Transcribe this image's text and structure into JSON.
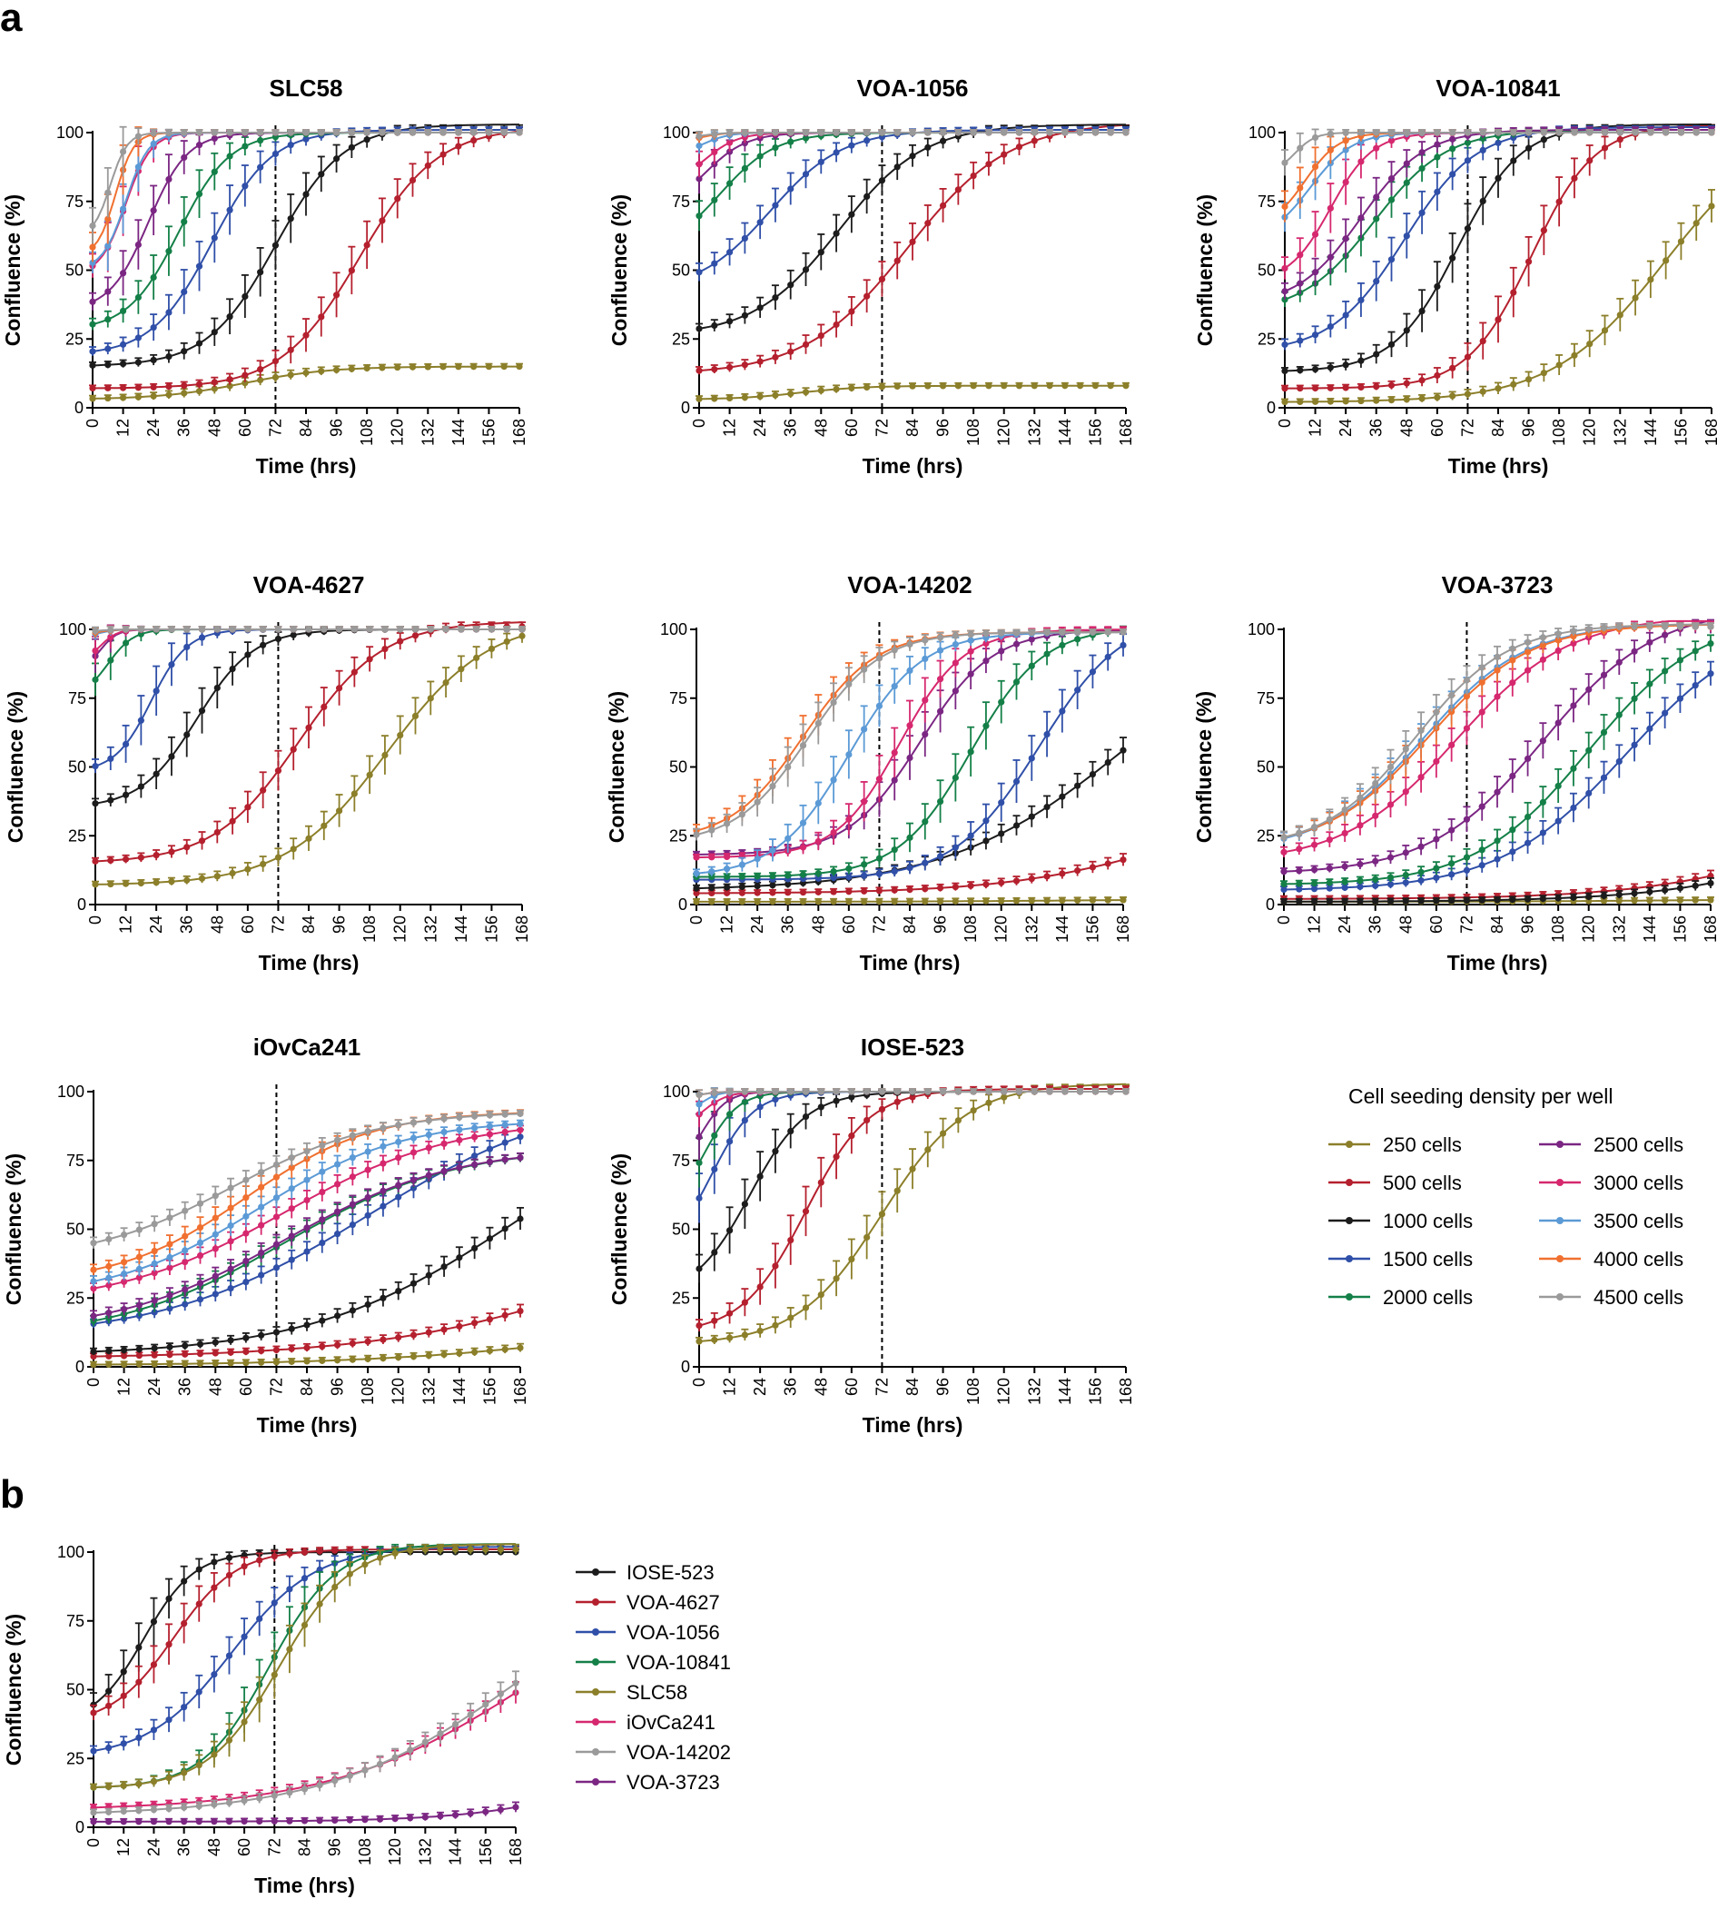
{
  "figure": {
    "panel_a": "a",
    "panel_b": "b",
    "xlabel": "Time (hrs)",
    "ylabel": "Confluence (%)",
    "legend_a_title": "Cell seeding density per well",
    "vline_at": 72
  },
  "chart_data": [
    {
      "type": "line",
      "title": "SLC58",
      "xlabel": "Time (hrs)",
      "ylabel": "Confluence (%)",
      "xlim": [
        0,
        168
      ],
      "ylim": [
        0,
        100
      ],
      "xticks": [
        0,
        12,
        24,
        36,
        48,
        60,
        72,
        84,
        96,
        108,
        120,
        132,
        144,
        156,
        168
      ],
      "yticks": [
        0,
        25,
        50,
        75,
        100
      ],
      "vline": 72,
      "series": [
        {
          "name": "250 cells",
          "color": "#8c7f2a",
          "lo": 3,
          "hi": 15,
          "mid": 60,
          "k": 0.06
        },
        {
          "name": "500 cells",
          "color": "#b5202e",
          "lo": 7,
          "hi": 102,
          "mid": 105,
          "k": 0.065
        },
        {
          "name": "1000 cells",
          "color": "#1c1c1c",
          "lo": 15,
          "hi": 103,
          "mid": 72,
          "k": 0.075
        },
        {
          "name": "1500 cells",
          "color": "#2f4fa8",
          "lo": 19,
          "hi": 101,
          "mid": 47,
          "k": 0.085
        },
        {
          "name": "2000 cells",
          "color": "#148048",
          "lo": 28,
          "hi": 100,
          "mid": 34,
          "k": 0.1
        },
        {
          "name": "2500 cells",
          "color": "#7b2683",
          "lo": 35,
          "hi": 100,
          "mid": 22,
          "k": 0.13
        },
        {
          "name": "3000 cells",
          "color": "#d6286e",
          "lo": 48,
          "hi": 100,
          "mid": 13,
          "k": 0.2
        },
        {
          "name": "3500 cells",
          "color": "#5b9ad6",
          "lo": 50,
          "hi": 100,
          "mid": 13,
          "k": 0.22
        },
        {
          "name": "4000 cells",
          "color": "#f07030",
          "lo": 55,
          "hi": 100,
          "mid": 9,
          "k": 0.28
        },
        {
          "name": "4500 cells",
          "color": "#9a9a9a",
          "lo": 62,
          "hi": 100,
          "mid": 7,
          "k": 0.3
        }
      ]
    },
    {
      "type": "line",
      "title": "VOA-1056",
      "xlabel": "Time (hrs)",
      "ylabel": "Confluence (%)",
      "xlim": [
        0,
        168
      ],
      "ylim": [
        0,
        100
      ],
      "xticks": [
        0,
        12,
        24,
        36,
        48,
        60,
        72,
        84,
        96,
        108,
        120,
        132,
        144,
        156,
        168
      ],
      "yticks": [
        0,
        25,
        50,
        75,
        100
      ],
      "vline": 72,
      "series": [
        {
          "name": "250 cells",
          "color": "#8c7f2a",
          "lo": 3,
          "hi": 8,
          "mid": 40,
          "k": 0.08
        },
        {
          "name": "500 cells",
          "color": "#b5202e",
          "lo": 12,
          "hi": 104,
          "mid": 82,
          "k": 0.05
        },
        {
          "name": "1000 cells",
          "color": "#1c1c1c",
          "lo": 26,
          "hi": 103,
          "mid": 55,
          "k": 0.06
        },
        {
          "name": "1500 cells",
          "color": "#2f4fa8",
          "lo": 42,
          "hi": 101,
          "mid": 28,
          "k": 0.07
        },
        {
          "name": "2000 cells",
          "color": "#148048",
          "lo": 55,
          "hi": 100,
          "mid": 8,
          "k": 0.09
        },
        {
          "name": "2500 cells",
          "color": "#7b2683",
          "lo": 70,
          "hi": 100,
          "mid": 2,
          "k": 0.12
        },
        {
          "name": "3000 cells",
          "color": "#d6286e",
          "lo": 80,
          "hi": 100,
          "mid": 2,
          "k": 0.15
        },
        {
          "name": "3500 cells",
          "color": "#5b9ad6",
          "lo": 92,
          "hi": 100,
          "mid": 2,
          "k": 0.2
        },
        {
          "name": "4000 cells",
          "color": "#f07030",
          "lo": 97,
          "hi": 100,
          "mid": 2,
          "k": 0.25
        },
        {
          "name": "4500 cells",
          "color": "#9a9a9a",
          "lo": 98,
          "hi": 100,
          "mid": 2,
          "k": 0.25
        }
      ]
    },
    {
      "type": "line",
      "title": "VOA-10841",
      "xlabel": "Time (hrs)",
      "ylabel": "Confluence (%)",
      "xlim": [
        0,
        168
      ],
      "ylim": [
        0,
        100
      ],
      "xticks": [
        0,
        12,
        24,
        36,
        48,
        60,
        72,
        84,
        96,
        108,
        120,
        132,
        144,
        156,
        168
      ],
      "yticks": [
        0,
        25,
        50,
        75,
        100
      ],
      "vline": 72,
      "series": [
        {
          "name": "250 cells",
          "color": "#8c7f2a",
          "lo": 2,
          "hi": 105,
          "mid": 150,
          "k": 0.045
        },
        {
          "name": "500 cells",
          "color": "#b5202e",
          "lo": 7,
          "hi": 103,
          "mid": 97,
          "k": 0.08
        },
        {
          "name": "1000 cells",
          "color": "#1c1c1c",
          "lo": 13,
          "hi": 103,
          "mid": 68,
          "k": 0.08
        },
        {
          "name": "1500 cells",
          "color": "#2f4fa8",
          "lo": 20,
          "hi": 102,
          "mid": 47,
          "k": 0.07
        },
        {
          "name": "2000 cells",
          "color": "#148048",
          "lo": 34,
          "hi": 101,
          "mid": 35,
          "k": 0.07
        },
        {
          "name": "2500 cells",
          "color": "#7b2683",
          "lo": 37,
          "hi": 101,
          "mid": 30,
          "k": 0.08
        },
        {
          "name": "3000 cells",
          "color": "#d6286e",
          "lo": 45,
          "hi": 100,
          "mid": 18,
          "k": 0.12
        },
        {
          "name": "3500 cells",
          "color": "#5b9ad6",
          "lo": 60,
          "hi": 100,
          "mid": 10,
          "k": 0.12
        },
        {
          "name": "4000 cells",
          "color": "#f07030",
          "lo": 65,
          "hi": 100,
          "mid": 8,
          "k": 0.15
        },
        {
          "name": "4500 cells",
          "color": "#9a9a9a",
          "lo": 85,
          "hi": 100,
          "mid": 4,
          "k": 0.25
        }
      ]
    },
    {
      "type": "line",
      "title": "VOA-4627",
      "xlabel": "Time (hrs)",
      "ylabel": "Confluence (%)",
      "xlim": [
        0,
        168
      ],
      "ylim": [
        0,
        100
      ],
      "xticks": [
        0,
        12,
        24,
        36,
        48,
        60,
        72,
        84,
        96,
        108,
        120,
        132,
        144,
        156,
        168
      ],
      "yticks": [
        0,
        25,
        50,
        75,
        100
      ],
      "vline": 72,
      "series": [
        {
          "name": "250 cells",
          "color": "#8c7f2a",
          "lo": 7,
          "hi": 104,
          "mid": 115,
          "k": 0.05
        },
        {
          "name": "500 cells",
          "color": "#b5202e",
          "lo": 15,
          "hi": 103,
          "mid": 80,
          "k": 0.06
        },
        {
          "name": "1000 cells",
          "color": "#1c1c1c",
          "lo": 35,
          "hi": 100,
          "mid": 40,
          "k": 0.09
        },
        {
          "name": "1500 cells",
          "color": "#2f4fa8",
          "lo": 48,
          "hi": 100,
          "mid": 22,
          "k": 0.14
        },
        {
          "name": "2000 cells",
          "color": "#148048",
          "lo": 75,
          "hi": 100,
          "mid": 5,
          "k": 0.2
        },
        {
          "name": "2500 cells",
          "color": "#7b2683",
          "lo": 85,
          "hi": 100,
          "mid": 2,
          "k": 0.3
        },
        {
          "name": "3000 cells",
          "color": "#d6286e",
          "lo": 88,
          "hi": 100,
          "mid": 2,
          "k": 0.3
        },
        {
          "name": "3500 cells",
          "color": "#5b9ad6",
          "lo": 97,
          "hi": 100,
          "mid": 1,
          "k": 0.3
        },
        {
          "name": "4000 cells",
          "color": "#f07030",
          "lo": 98,
          "hi": 100,
          "mid": 1,
          "k": 0.3
        },
        {
          "name": "4500 cells",
          "color": "#9a9a9a",
          "lo": 99,
          "hi": 100,
          "mid": 1,
          "k": 0.3
        }
      ]
    },
    {
      "type": "line",
      "title": "VOA-14202",
      "xlabel": "Time (hrs)",
      "ylabel": "Confluence (%)",
      "xlim": [
        0,
        168
      ],
      "ylim": [
        0,
        100
      ],
      "xticks": [
        0,
        12,
        24,
        36,
        48,
        60,
        72,
        84,
        96,
        108,
        120,
        132,
        144,
        156,
        168
      ],
      "yticks": [
        0,
        25,
        50,
        75,
        100
      ],
      "vline": 72,
      "series": [
        {
          "name": "250 cells",
          "color": "#8c7f2a",
          "lo": 1,
          "hi": 2,
          "mid": 150,
          "k": 0.03
        },
        {
          "name": "500 cells",
          "color": "#b5202e",
          "lo": 4,
          "hi": 40,
          "mid": 190,
          "k": 0.03
        },
        {
          "name": "1000 cells",
          "color": "#1c1c1c",
          "lo": 5,
          "hi": 110,
          "mid": 170,
          "k": 0.028
        },
        {
          "name": "1500 cells",
          "color": "#2f4fa8",
          "lo": 9,
          "hi": 106,
          "mid": 135,
          "k": 0.06
        },
        {
          "name": "2000 cells",
          "color": "#148048",
          "lo": 10,
          "hi": 101,
          "mid": 108,
          "k": 0.07
        },
        {
          "name": "2500 cells",
          "color": "#7b2683",
          "lo": 18,
          "hi": 100,
          "mid": 88,
          "k": 0.07
        },
        {
          "name": "3000 cells",
          "color": "#d6286e",
          "lo": 17,
          "hi": 100,
          "mid": 80,
          "k": 0.08
        },
        {
          "name": "3500 cells",
          "color": "#5b9ad6",
          "lo": 10,
          "hi": 99,
          "mid": 60,
          "k": 0.07
        },
        {
          "name": "4000 cells",
          "color": "#f07030",
          "lo": 23,
          "hi": 99,
          "mid": 42,
          "k": 0.07
        },
        {
          "name": "4500 cells",
          "color": "#9a9a9a",
          "lo": 22,
          "hi": 99,
          "mid": 44,
          "k": 0.07
        }
      ]
    },
    {
      "type": "line",
      "title": "VOA-3723",
      "xlabel": "Time (hrs)",
      "ylabel": "Confluence (%)",
      "xlim": [
        0,
        168
      ],
      "ylim": [
        0,
        100
      ],
      "xticks": [
        0,
        12,
        24,
        36,
        48,
        60,
        72,
        84,
        96,
        108,
        120,
        132,
        144,
        156,
        168
      ],
      "yticks": [
        0,
        25,
        50,
        75,
        100
      ],
      "vline": 72,
      "series": [
        {
          "name": "250 cells",
          "color": "#8c7f2a",
          "lo": 1,
          "hi": 2,
          "mid": 150,
          "k": 0.03
        },
        {
          "name": "500 cells",
          "color": "#b5202e",
          "lo": 2,
          "hi": 40,
          "mid": 210,
          "k": 0.03
        },
        {
          "name": "1000 cells",
          "color": "#1c1c1c",
          "lo": 1,
          "hi": 40,
          "mid": 220,
          "k": 0.03
        },
        {
          "name": "1500 cells",
          "color": "#2f4fa8",
          "lo": 5,
          "hi": 105,
          "mid": 135,
          "k": 0.04
        },
        {
          "name": "2000 cells",
          "color": "#148048",
          "lo": 7,
          "hi": 105,
          "mid": 120,
          "k": 0.045
        },
        {
          "name": "2500 cells",
          "color": "#7b2683",
          "lo": 11,
          "hi": 108,
          "mid": 102,
          "k": 0.045
        },
        {
          "name": "3000 cells",
          "color": "#d6286e",
          "lo": 15,
          "hi": 105,
          "mid": 68,
          "k": 0.045
        },
        {
          "name": "3500 cells",
          "color": "#5b9ad6",
          "lo": 19,
          "hi": 102,
          "mid": 55,
          "k": 0.05
        },
        {
          "name": "4000 cells",
          "color": "#f07030",
          "lo": 20,
          "hi": 102,
          "mid": 57,
          "k": 0.05
        },
        {
          "name": "4500 cells",
          "color": "#9a9a9a",
          "lo": 20,
          "hi": 102,
          "mid": 52,
          "k": 0.055
        }
      ]
    },
    {
      "type": "line",
      "title": "iOvCa241",
      "xlabel": "Time (hrs)",
      "ylabel": "Confluence (%)",
      "xlim": [
        0,
        168
      ],
      "ylim": [
        0,
        100
      ],
      "xticks": [
        0,
        12,
        24,
        36,
        48,
        60,
        72,
        84,
        96,
        108,
        120,
        132,
        144,
        156,
        168
      ],
      "yticks": [
        0,
        25,
        50,
        75,
        100
      ],
      "vline": 72,
      "series": [
        {
          "name": "250 cells",
          "color": "#8c7f2a",
          "lo": 0.5,
          "hi": 25,
          "mid": 220,
          "k": 0.02
        },
        {
          "name": "500 cells",
          "color": "#b5202e",
          "lo": 3,
          "hi": 80,
          "mid": 230,
          "k": 0.02
        },
        {
          "name": "1000 cells",
          "color": "#1c1c1c",
          "lo": 4,
          "hi": 100,
          "mid": 165,
          "k": 0.025
        },
        {
          "name": "1500 cells",
          "color": "#2f4fa8",
          "lo": 10,
          "hi": 100,
          "mid": 108,
          "k": 0.025
        },
        {
          "name": "2000 cells",
          "color": "#148048",
          "lo": 10,
          "hi": 80,
          "mid": 75,
          "k": 0.03
        },
        {
          "name": "2500 cells",
          "color": "#7b2683",
          "lo": 12,
          "hi": 80,
          "mid": 75,
          "k": 0.03
        },
        {
          "name": "3000 cells",
          "color": "#d6286e",
          "lo": 22,
          "hi": 90,
          "mid": 75,
          "k": 0.03
        },
        {
          "name": "3500 cells",
          "color": "#5b9ad6",
          "lo": 25,
          "hi": 90,
          "mid": 65,
          "k": 0.035
        },
        {
          "name": "4000 cells",
          "color": "#f07030",
          "lo": 30,
          "hi": 93,
          "mid": 60,
          "k": 0.04
        },
        {
          "name": "4500 cells",
          "color": "#9a9a9a",
          "lo": 38,
          "hi": 93,
          "mid": 55,
          "k": 0.035
        }
      ]
    },
    {
      "type": "line",
      "title": "IOSE-523",
      "xlabel": "Time (hrs)",
      "ylabel": "Confluence (%)",
      "xlim": [
        0,
        168
      ],
      "ylim": [
        0,
        100
      ],
      "xticks": [
        0,
        12,
        24,
        36,
        48,
        60,
        72,
        84,
        96,
        108,
        120,
        132,
        144,
        156,
        168
      ],
      "yticks": [
        0,
        25,
        50,
        75,
        100
      ],
      "vline": 72,
      "series": [
        {
          "name": "250 cells",
          "color": "#8c7f2a",
          "lo": 8,
          "hi": 103,
          "mid": 72,
          "k": 0.06
        },
        {
          "name": "500 cells",
          "color": "#b5202e",
          "lo": 12,
          "hi": 101,
          "mid": 42,
          "k": 0.08
        },
        {
          "name": "1000 cells",
          "color": "#1c1c1c",
          "lo": 25,
          "hi": 100,
          "mid": 20,
          "k": 0.09
        },
        {
          "name": "1500 cells",
          "color": "#2f4fa8",
          "lo": 40,
          "hi": 100,
          "mid": 5,
          "k": 0.12
        },
        {
          "name": "2000 cells",
          "color": "#148048",
          "lo": 55,
          "hi": 100,
          "mid": 2,
          "k": 0.15
        },
        {
          "name": "2500 cells",
          "color": "#7b2683",
          "lo": 70,
          "hi": 100,
          "mid": 1,
          "k": 0.2
        },
        {
          "name": "3000 cells",
          "color": "#d6286e",
          "lo": 85,
          "hi": 100,
          "mid": 1,
          "k": 0.2
        },
        {
          "name": "3500 cells",
          "color": "#5b9ad6",
          "lo": 92,
          "hi": 100,
          "mid": 1,
          "k": 0.3
        },
        {
          "name": "4000 cells",
          "color": "#f07030",
          "lo": 98,
          "hi": 100,
          "mid": 1,
          "k": 0.3
        },
        {
          "name": "4500 cells",
          "color": "#9a9a9a",
          "lo": 98,
          "hi": 100,
          "mid": 1,
          "k": 0.3
        }
      ]
    },
    {
      "type": "line",
      "title": "",
      "xlabel": "Time (hrs)",
      "ylabel": "Confluence (%)",
      "xlim": [
        0,
        168
      ],
      "ylim": [
        0,
        100
      ],
      "xticks": [
        0,
        12,
        24,
        36,
        48,
        60,
        72,
        84,
        96,
        108,
        120,
        132,
        144,
        156,
        168
      ],
      "yticks": [
        0,
        25,
        50,
        75,
        100
      ],
      "vline": 72,
      "series": [
        {
          "name": "IOSE-523",
          "color": "#1c1c1c",
          "lo": 37,
          "hi": 100,
          "mid": 20,
          "k": 0.1
        },
        {
          "name": "VOA-4627",
          "color": "#b5202e",
          "lo": 37,
          "hi": 101,
          "mid": 32,
          "k": 0.08
        },
        {
          "name": "VOA-1056",
          "color": "#2f4fa8",
          "lo": 25,
          "hi": 102,
          "mid": 55,
          "k": 0.06
        },
        {
          "name": "VOA-10841",
          "color": "#148048",
          "lo": 14,
          "hi": 103,
          "mid": 70,
          "k": 0.075
        },
        {
          "name": "SLC58",
          "color": "#8c7f2a",
          "lo": 14,
          "hi": 103,
          "mid": 74,
          "k": 0.07
        },
        {
          "name": "iOvCa241",
          "color": "#d6286e",
          "lo": 6,
          "hi": 100,
          "mid": 175,
          "k": 0.025
        },
        {
          "name": "VOA-14202",
          "color": "#9a9a9a",
          "lo": 4,
          "hi": 110,
          "mid": 175,
          "k": 0.025
        },
        {
          "name": "VOA-3723",
          "color": "#7b2683",
          "lo": 2,
          "hi": 40,
          "mid": 220,
          "k": 0.035
        }
      ]
    }
  ]
}
